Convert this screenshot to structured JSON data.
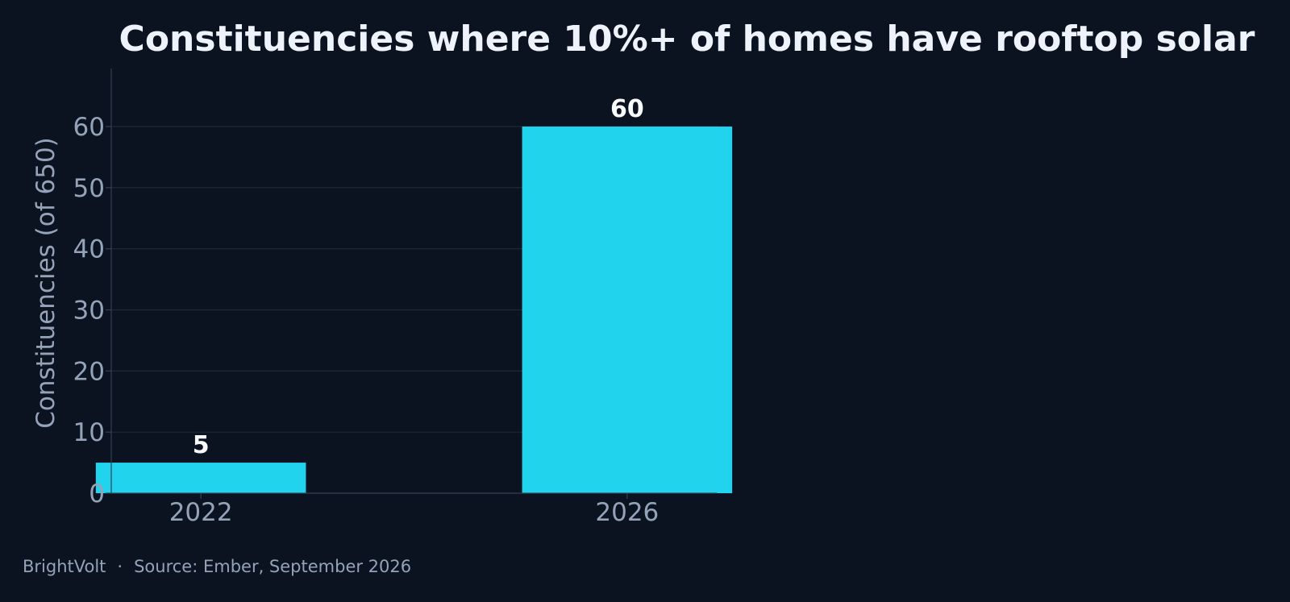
{
  "chart_data": {
    "type": "bar",
    "title": "Constituencies where 10%+ of homes have rooftop solar",
    "xlabel": "",
    "ylabel": "Constituencies (of 650)",
    "categories": [
      "2022",
      "2026"
    ],
    "values": [
      5,
      60
    ],
    "data_labels": [
      "5",
      "60"
    ],
    "ylim": [
      0,
      69.5
    ],
    "yticks": [
      0,
      10,
      20,
      30,
      40,
      50,
      60
    ],
    "grid": true,
    "legend": "none",
    "colors": {
      "background": "#0b1220",
      "bar": "#22d3ee",
      "grid": "#1e293b",
      "axis": "#334155",
      "title": "#eef2fa",
      "text": "#94a3b8",
      "data_label": "#f8fafc"
    }
  },
  "footer": {
    "brand": "BrightVolt",
    "separator": "·",
    "source": "Source: Ember, September 2026"
  }
}
